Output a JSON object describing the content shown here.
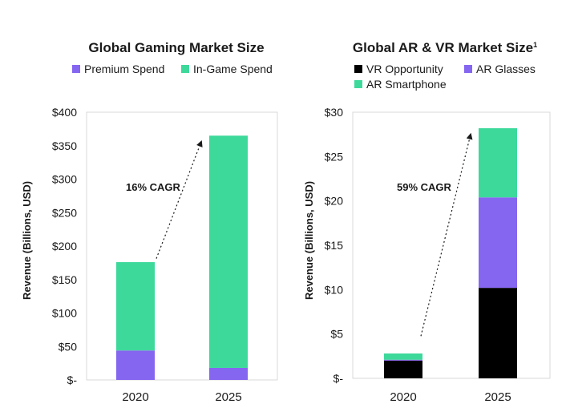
{
  "chart_data": [
    {
      "type": "bar",
      "stacked": true,
      "title": "Global Gaming Market Size",
      "ylabel": "Revenue (Billions, USD)",
      "xlabel": "",
      "categories": [
        "2020",
        "2025"
      ],
      "ylim": [
        0,
        400
      ],
      "yticks": [
        0,
        50,
        100,
        150,
        200,
        250,
        300,
        350,
        400
      ],
      "ytick_labels": [
        "$-",
        "$50",
        "$100",
        "$150",
        "$200",
        "$250",
        "$300",
        "$350",
        "$400"
      ],
      "legend_position": "top",
      "series": [
        {
          "name": "Premium Spend",
          "color": "#8566f0",
          "values": [
            44,
            18
          ]
        },
        {
          "name": "In-Game Spend",
          "color": "#3dd99b",
          "values": [
            132,
            347
          ]
        }
      ],
      "annotation": {
        "text": "16% CAGR",
        "style": "dotted-arrow"
      }
    },
    {
      "type": "bar",
      "stacked": true,
      "title": "Global AR & VR Market Size",
      "title_superscript": "1",
      "ylabel": "Revenue (Billions, USD)",
      "xlabel": "",
      "categories": [
        "2020",
        "2025"
      ],
      "ylim": [
        0,
        30
      ],
      "yticks": [
        0,
        5,
        10,
        15,
        20,
        25,
        30
      ],
      "ytick_labels": [
        "$-",
        "$5",
        "$10",
        "$15",
        "$20",
        "$25",
        "$30"
      ],
      "legend_position": "top",
      "series": [
        {
          "name": "VR Opportunity",
          "color": "#000000",
          "values": [
            2.0,
            10.2
          ]
        },
        {
          "name": "AR Glasses",
          "color": "#8566f0",
          "values": [
            0.1,
            10.2
          ]
        },
        {
          "name": "AR Smartphone",
          "color": "#3dd99b",
          "values": [
            0.7,
            7.8
          ]
        }
      ],
      "annotation": {
        "text": "59% CAGR",
        "style": "dotted-arrow"
      }
    }
  ]
}
